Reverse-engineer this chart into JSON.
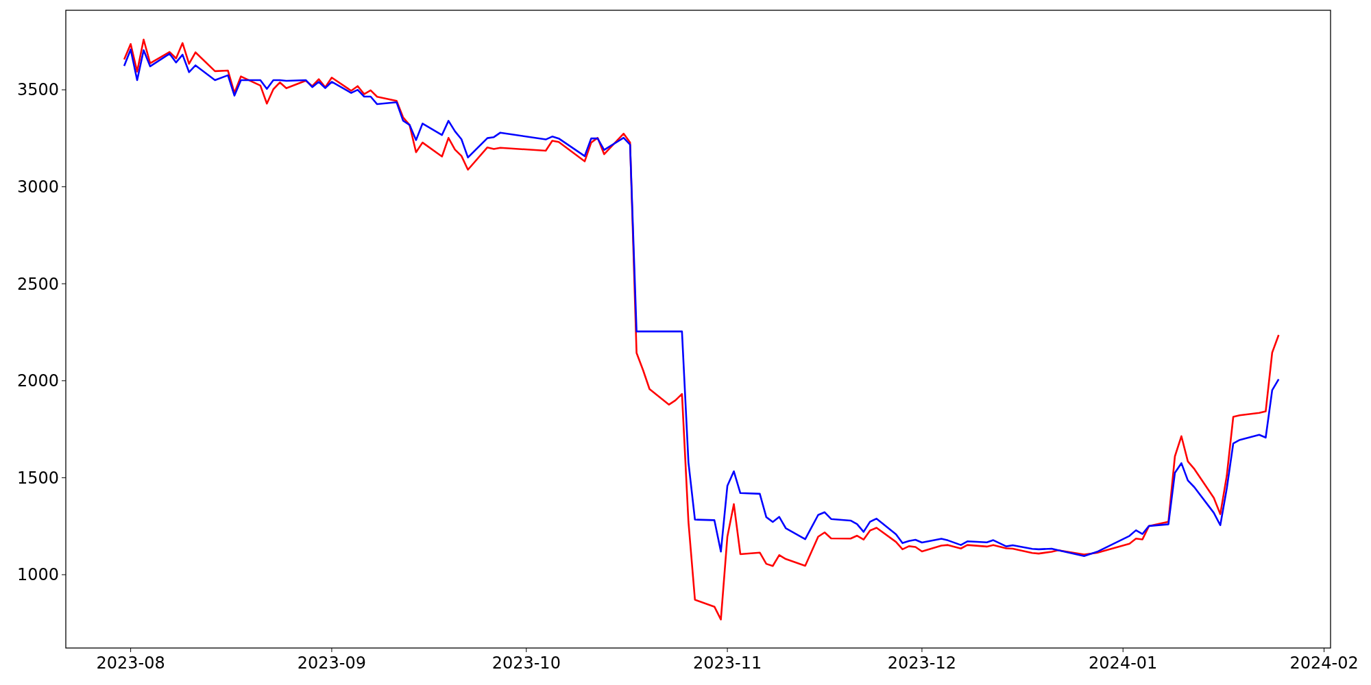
{
  "chart_data": {
    "type": "line",
    "x": [
      "2023-07-31",
      "2023-08-01",
      "2023-08-02",
      "2023-08-03",
      "2023-08-04",
      "2023-08-07",
      "2023-08-08",
      "2023-08-09",
      "2023-08-10",
      "2023-08-11",
      "2023-08-14",
      "2023-08-16",
      "2023-08-17",
      "2023-08-18",
      "2023-08-21",
      "2023-08-22",
      "2023-08-23",
      "2023-08-24",
      "2023-08-25",
      "2023-08-28",
      "2023-08-29",
      "2023-08-30",
      "2023-08-31",
      "2023-09-01",
      "2023-09-04",
      "2023-09-05",
      "2023-09-06",
      "2023-09-07",
      "2023-09-08",
      "2023-09-11",
      "2023-09-12",
      "2023-09-13",
      "2023-09-14",
      "2023-09-15",
      "2023-09-18",
      "2023-09-19",
      "2023-09-20",
      "2023-09-21",
      "2023-09-22",
      "2023-09-25",
      "2023-09-26",
      "2023-09-27",
      "2023-10-04",
      "2023-10-05",
      "2023-10-06",
      "2023-10-10",
      "2023-10-11",
      "2023-10-12",
      "2023-10-13",
      "2023-10-16",
      "2023-10-17",
      "2023-10-18",
      "2023-10-19",
      "2023-10-20",
      "2023-10-23",
      "2023-10-24",
      "2023-10-25",
      "2023-10-26",
      "2023-10-27",
      "2023-10-30",
      "2023-10-31",
      "2023-11-01",
      "2023-11-02",
      "2023-11-03",
      "2023-11-06",
      "2023-11-07",
      "2023-11-08",
      "2023-11-09",
      "2023-11-10",
      "2023-11-13",
      "2023-11-15",
      "2023-11-16",
      "2023-11-17",
      "2023-11-20",
      "2023-11-21",
      "2023-11-22",
      "2023-11-23",
      "2023-11-24",
      "2023-11-27",
      "2023-11-28",
      "2023-11-29",
      "2023-11-30",
      "2023-12-01",
      "2023-12-04",
      "2023-12-05",
      "2023-12-07",
      "2023-12-08",
      "2023-12-11",
      "2023-12-12",
      "2023-12-14",
      "2023-12-15",
      "2023-12-18",
      "2023-12-19",
      "2023-12-21",
      "2023-12-22",
      "2023-12-26",
      "2023-12-28",
      "2024-01-02",
      "2024-01-03",
      "2024-01-04",
      "2024-01-05",
      "2024-01-08",
      "2024-01-09",
      "2024-01-10",
      "2024-01-11",
      "2024-01-12",
      "2024-01-15",
      "2024-01-16",
      "2024-01-17",
      "2024-01-18",
      "2024-01-19",
      "2024-01-22",
      "2024-01-23",
      "2024-01-24",
      "2024-01-25"
    ],
    "series": [
      {
        "color": "#ff0000",
        "values": [
          3657,
          3736,
          3594,
          3759,
          3637,
          3695,
          3662,
          3741,
          3634,
          3693,
          3596,
          3599,
          3484,
          3569,
          3522,
          3429,
          3503,
          3538,
          3508,
          3547,
          3519,
          3555,
          3513,
          3563,
          3495,
          3519,
          3478,
          3497,
          3464,
          3443,
          3358,
          3319,
          3178,
          3228,
          3156,
          3252,
          3192,
          3159,
          3088,
          3203,
          3195,
          3201,
          3186,
          3237,
          3231,
          3131,
          3228,
          3252,
          3168,
          3274,
          3228,
          2143,
          2055,
          1957,
          1877,
          1899,
          1932,
          1272,
          871,
          835,
          769,
          1196,
          1364,
          1106,
          1114,
          1056,
          1045,
          1101,
          1081,
          1046,
          1196,
          1218,
          1187,
          1186,
          1201,
          1181,
          1228,
          1242,
          1169,
          1131,
          1147,
          1143,
          1120,
          1150,
          1153,
          1135,
          1153,
          1145,
          1153,
          1136,
          1134,
          1112,
          1109,
          1118,
          1126,
          1104,
          1113,
          1160,
          1186,
          1182,
          1251,
          1273,
          1610,
          1714,
          1584,
          1545,
          1396,
          1312,
          1510,
          1814,
          1822,
          1834,
          1842,
          2145,
          2236
        ]
      },
      {
        "color": "#0000ff",
        "values": [
          3623,
          3708,
          3550,
          3704,
          3621,
          3686,
          3641,
          3681,
          3591,
          3626,
          3550,
          3575,
          3470,
          3550,
          3550,
          3505,
          3550,
          3550,
          3546,
          3550,
          3514,
          3541,
          3509,
          3541,
          3484,
          3500,
          3465,
          3465,
          3426,
          3436,
          3341,
          3319,
          3241,
          3326,
          3267,
          3340,
          3286,
          3245,
          3151,
          3251,
          3256,
          3279,
          3244,
          3259,
          3249,
          3158,
          3249,
          3249,
          3190,
          3253,
          3217,
          2254,
          2254,
          2254,
          2254,
          2254,
          2254,
          1579,
          1284,
          1281,
          1119,
          1458,
          1533,
          1421,
          1417,
          1297,
          1272,
          1298,
          1240,
          1183,
          1308,
          1322,
          1287,
          1279,
          1261,
          1221,
          1273,
          1289,
          1208,
          1163,
          1174,
          1180,
          1166,
          1185,
          1177,
          1153,
          1172,
          1167,
          1178,
          1146,
          1152,
          1133,
          1131,
          1134,
          1126,
          1096,
          1118,
          1200,
          1229,
          1210,
          1251,
          1260,
          1525,
          1575,
          1486,
          1451,
          1319,
          1255,
          1445,
          1677,
          1695,
          1721,
          1707,
          1951,
          2008
        ]
      }
    ],
    "xlim": [
      "2023-07-22",
      "2024-02-02"
    ],
    "xticks": [
      {
        "value": "2023-08-01",
        "label": "2023-08"
      },
      {
        "value": "2023-09-01",
        "label": "2023-09"
      },
      {
        "value": "2023-10-01",
        "label": "2023-10"
      },
      {
        "value": "2023-11-01",
        "label": "2023-11"
      },
      {
        "value": "2023-12-01",
        "label": "2023-12"
      },
      {
        "value": "2024-01-01",
        "label": "2024-01"
      },
      {
        "value": "2024-02-01",
        "label": "2024-02"
      }
    ],
    "ylim": [
      622,
      3910
    ],
    "yticks": [
      1000,
      1500,
      2000,
      2500,
      3000,
      3500
    ],
    "grid": false,
    "marker": "none",
    "line_style": "solid"
  }
}
